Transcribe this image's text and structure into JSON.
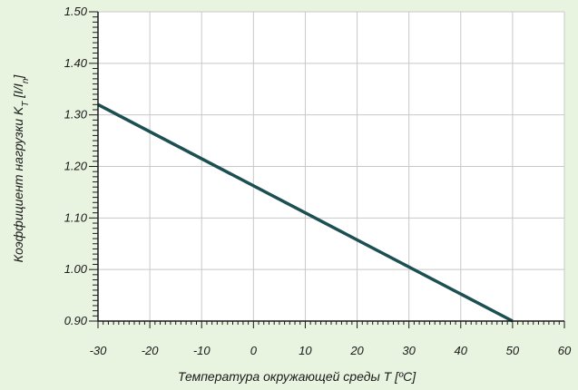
{
  "chart_data": {
    "type": "line",
    "title": "",
    "xlabel": "Температура окружающей среды T [ºC]",
    "ylabel": {
      "main": "Коэффициент нагрузки K",
      "sub": "T",
      "bracket_open": " [I/I",
      "bracket_sub": "n",
      "bracket_close": "]"
    },
    "xlim": [
      -30,
      60
    ],
    "ylim": [
      0.9,
      1.5
    ],
    "x_ticks": [
      -30,
      -20,
      -10,
      0,
      10,
      20,
      30,
      40,
      50,
      60
    ],
    "x_tick_labels": [
      "-30",
      "-20",
      "-10",
      "0",
      "10",
      "20",
      "30",
      "40",
      "50",
      "60"
    ],
    "y_ticks": [
      0.9,
      1.0,
      1.1,
      1.2,
      1.3,
      1.4,
      1.5
    ],
    "y_tick_labels": [
      "0.90",
      "1.00",
      "1.10",
      "1.20",
      "1.30",
      "1.40",
      "1.50"
    ],
    "grid": true,
    "minor_tick_step_x": 1,
    "minor_tick_step_y": 0.01,
    "series": [
      {
        "x": [
          -30,
          50
        ],
        "y": [
          1.32,
          0.9
        ]
      }
    ],
    "colors": {
      "background": "#e8f3e0",
      "plot_area": "#ffffff",
      "grid": "#c8c8c8",
      "axis": "#1a1a1a",
      "line": "#1b4f52"
    }
  }
}
